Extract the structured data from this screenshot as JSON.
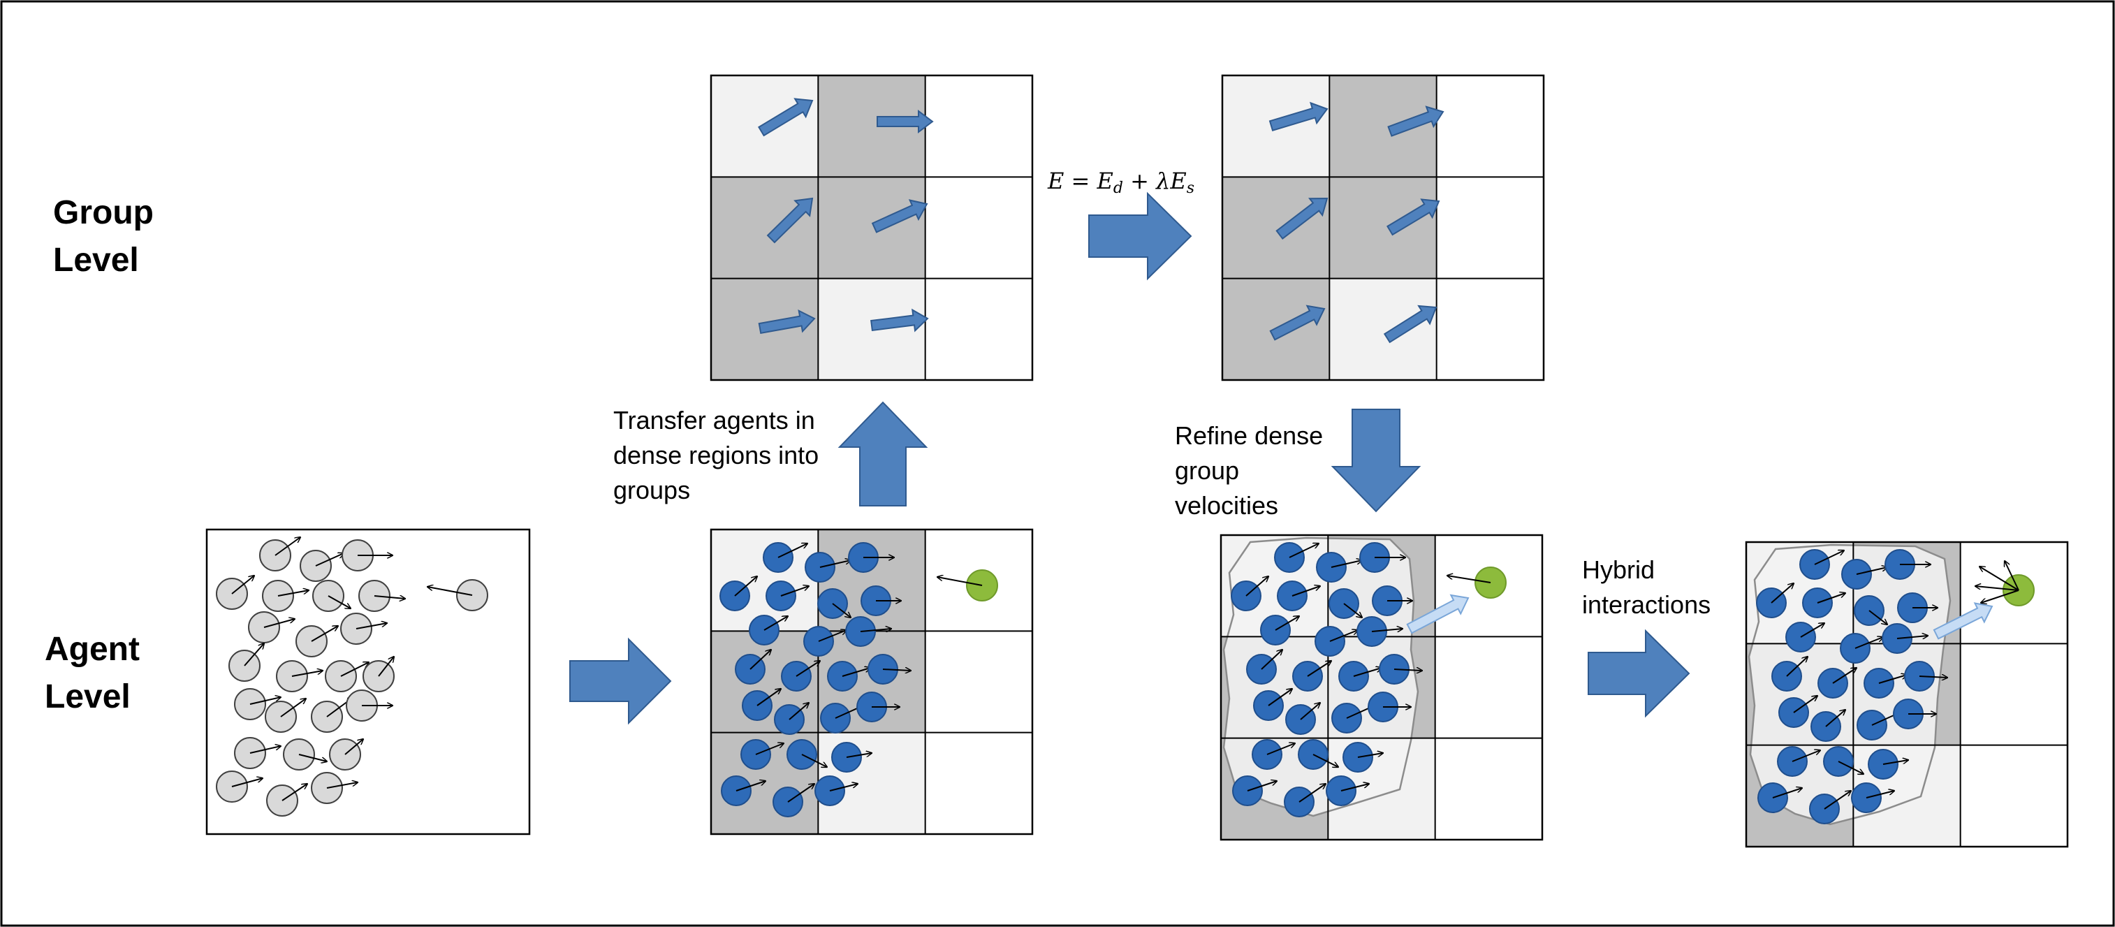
{
  "labels": {
    "group_level": [
      "Group",
      "Level"
    ],
    "agent_level": [
      "Agent",
      "Level"
    ],
    "transfer": [
      "Transfer agents in",
      "dense regions into",
      "groups"
    ],
    "refine": [
      "Refine dense",
      "group",
      "velocities"
    ],
    "hybrid": [
      "Hybrid",
      "interactions"
    ]
  },
  "equation": {
    "lhs": "E",
    "eq": " = ",
    "term1": "E",
    "sub1": "d",
    "plus": " + ",
    "lambda": "λ",
    "term2": "E",
    "sub2": "s"
  },
  "colors": {
    "border": "#000000",
    "cell_dark": "#bfbfbf",
    "cell_light": "#f2f2f2",
    "cell_white": "#ffffff",
    "agent_blue": "#2e6bb8",
    "agent_blue_edge": "#1f4e8c",
    "agent_gray": "#d9d9d9",
    "agent_green": "#8dbb3c",
    "big_arrow": "#4f81bd",
    "big_arrow_edge": "#2f5a8f",
    "hybrid_arrow": "#c6dcf5",
    "group_region": "#f2f2f2"
  },
  "icons": {
    "flow_arrow": "right-arrow-icon",
    "up_arrow": "up-arrow-icon",
    "down_arrow": "down-arrow-icon",
    "velocity_arrow": "velocity-arrow-icon"
  }
}
